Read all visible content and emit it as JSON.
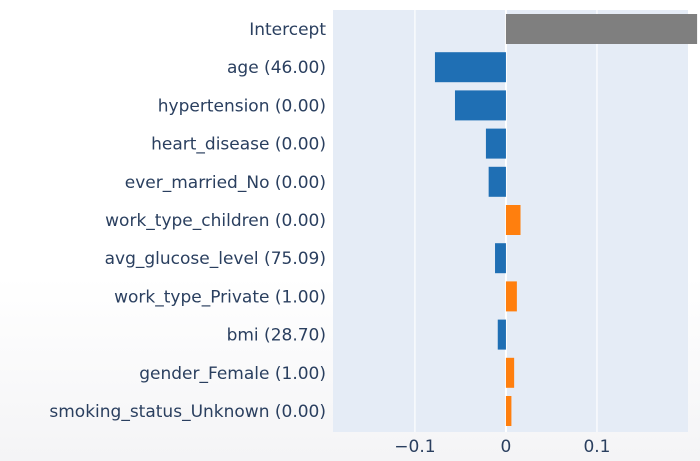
{
  "chart_data": {
    "type": "bar",
    "orientation": "horizontal",
    "categories": [
      "Intercept",
      "age (46.00)",
      "hypertension (0.00)",
      "heart_disease (0.00)",
      "ever_married_No (0.00)",
      "work_type_children (0.00)",
      "avg_glucose_level (75.09)",
      "work_type_Private (1.00)",
      "bmi (28.70)",
      "gender_Female (1.00)",
      "smoking_status_Unknown (0.00)"
    ],
    "values": [
      0.21,
      -0.078,
      -0.056,
      -0.022,
      -0.019,
      0.016,
      -0.012,
      0.012,
      -0.009,
      0.009,
      0.006
    ],
    "xlim": [
      -0.19,
      0.2
    ],
    "xticks": [
      -0.1,
      0,
      0.1
    ],
    "xtick_labels": [
      "−0.1",
      "0",
      "0.1"
    ],
    "grid": true,
    "colors": {
      "intercept": "#7f7f7f",
      "negative": "#1f6fb4",
      "positive": "#ff7f0e",
      "plot_bg": "#e5ecf6",
      "grid": "#ffffff"
    }
  }
}
